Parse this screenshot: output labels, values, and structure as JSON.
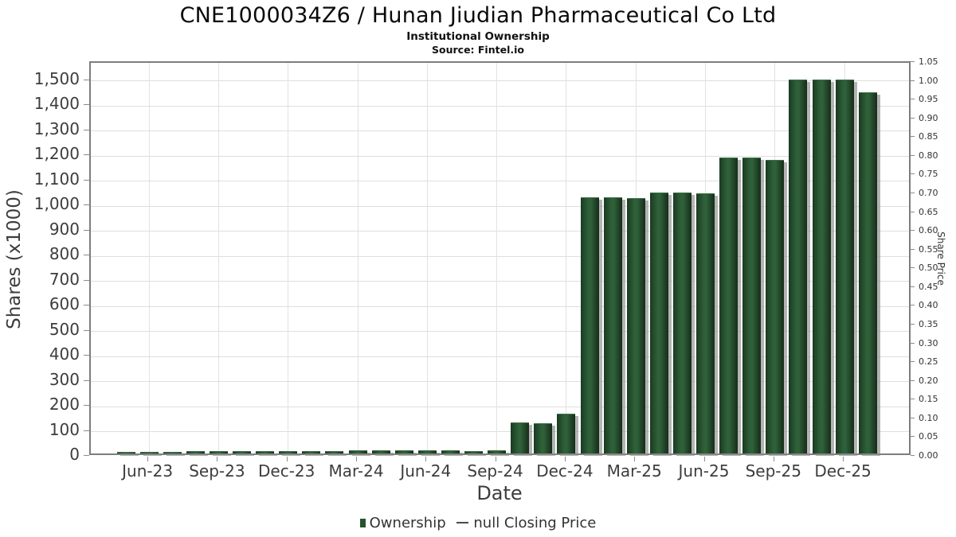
{
  "header": {
    "title": "CNE1000034Z6 / Hunan Jiudian Pharmaceutical Co Ltd",
    "subtitle": "Institutional Ownership",
    "source": "Source: Fintel.io"
  },
  "legend": {
    "ownership_label": "Ownership",
    "price_label": "null Closing Price"
  },
  "colors": {
    "bar_center": "#2f6039",
    "bar_edge": "#1a3a21",
    "legend_swatch": "#275230",
    "grid": "#dedede",
    "axis_border": "#7d7d7d",
    "text": "#3d3d3d"
  },
  "chart_data": {
    "type": "bar",
    "title": "CNE1000034Z6 / Hunan Jiudian Pharmaceutical Co Ltd",
    "subtitle": "Institutional Ownership",
    "source": "Source: Fintel.io",
    "xlabel": "Date",
    "ylabel_left": "Shares (x1000)",
    "ylabel_right": "Share Price",
    "grid": true,
    "legend_position": "bottom",
    "x": [
      "May-23",
      "Jun-23",
      "Jul-23",
      "Aug-23",
      "Sep-23",
      "Oct-23",
      "Nov-23",
      "Dec-23",
      "Jan-24",
      "Feb-24",
      "Mar-24",
      "Apr-24",
      "May-24",
      "Jun-24",
      "Jul-24",
      "Aug-24",
      "Sep-24",
      "Oct-24",
      "Nov-24",
      "Dec-24",
      "Jan-25",
      "Feb-25",
      "Mar-25",
      "Apr-25",
      "May-25",
      "Jun-25",
      "Jul-25",
      "Aug-25",
      "Sep-25",
      "Oct-25",
      "Nov-25",
      "Dec-25",
      "Jan-26"
    ],
    "series": [
      {
        "name": "Ownership",
        "values": [
          7,
          7,
          7,
          8,
          8,
          8,
          8,
          8,
          8,
          9,
          13,
          13,
          13,
          13,
          12,
          9,
          13,
          125,
          122,
          160,
          1021,
          1021,
          1018,
          1040,
          1040,
          1037,
          1181,
          1181,
          1170,
          1492,
          1492,
          1492,
          1441
        ]
      },
      {
        "name": "null Closing Price",
        "values": []
      }
    ],
    "x_tick_labels": [
      "Jun-23",
      "Sep-23",
      "Dec-23",
      "Mar-24",
      "Jun-24",
      "Sep-24",
      "Dec-24",
      "Mar-25",
      "Jun-25",
      "Sep-25",
      "Dec-25"
    ],
    "x_tick_indices": [
      1,
      4,
      7,
      10,
      13,
      16,
      19,
      22,
      25,
      28,
      31
    ],
    "left_axis": {
      "min": 0,
      "max": 1500,
      "step": 100
    },
    "right_axis": {
      "min": 0.0,
      "max": 1.05,
      "step": 0.05
    }
  }
}
